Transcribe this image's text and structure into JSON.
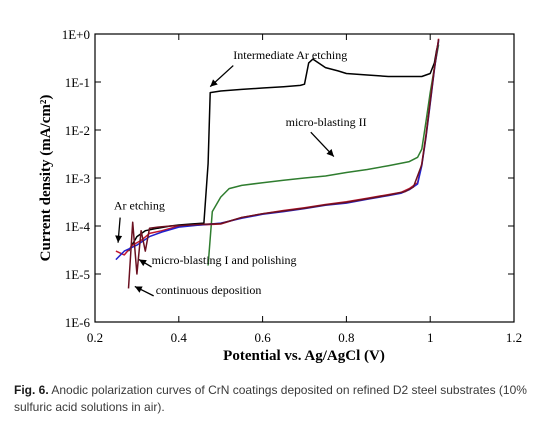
{
  "chart_data": {
    "type": "line",
    "xlabel": "Potential vs. Ag/AgCl (V)",
    "ylabel": "Current density (mA/cm²)",
    "xlim": [
      0.2,
      1.2
    ],
    "xticks": [
      "0.2",
      "0.4",
      "0.6",
      "0.8",
      "1",
      "1.2"
    ],
    "y_scale": "log",
    "ylim": [
      1e-06,
      1
    ],
    "yticks": [
      "1E-6",
      "1E-5",
      "1E-4",
      "1E-3",
      "1E-2",
      "1E-1",
      "1E+0"
    ],
    "grid": false,
    "series": [
      {
        "color": "#000000",
        "x": [
          0.28,
          0.3,
          0.32,
          0.35,
          0.38,
          0.4,
          0.43,
          0.46,
          0.47,
          0.475,
          0.5,
          0.55,
          0.6,
          0.65,
          0.69,
          0.7,
          0.71,
          0.72,
          0.75,
          0.78,
          0.8,
          0.85,
          0.9,
          0.95,
          0.98,
          1.0,
          1.01,
          1.015,
          1.02
        ],
        "y": [
          3e-05,
          6e-05,
          8e-05,
          9e-05,
          0.0001,
          0.000105,
          0.00011,
          0.000115,
          0.002,
          0.06,
          0.065,
          0.07,
          0.075,
          0.08,
          0.085,
          0.09,
          0.25,
          0.3,
          0.2,
          0.17,
          0.15,
          0.14,
          0.13,
          0.13,
          0.13,
          0.15,
          0.25,
          0.45,
          0.7
        ]
      },
      {
        "color": "#2f7d2f",
        "x": [
          0.47,
          0.48,
          0.5,
          0.52,
          0.55,
          0.6,
          0.65,
          0.7,
          0.75,
          0.8,
          0.85,
          0.9,
          0.95,
          0.97,
          0.98,
          0.99,
          1.0,
          1.01,
          1.02
        ],
        "y": [
          1.5e-05,
          0.0002,
          0.0004,
          0.0006,
          0.0007,
          0.0008,
          0.0009,
          0.001,
          0.0011,
          0.0013,
          0.0015,
          0.0018,
          0.0022,
          0.0027,
          0.004,
          0.015,
          0.06,
          0.2,
          0.6
        ]
      },
      {
        "color": "#c0162d",
        "x": [
          0.25,
          0.27,
          0.29,
          0.31,
          0.33,
          0.36,
          0.4,
          0.45,
          0.5,
          0.55,
          0.6,
          0.65,
          0.7,
          0.75,
          0.8,
          0.85,
          0.9,
          0.93,
          0.95,
          0.97,
          0.98,
          0.99,
          1.0,
          1.01,
          1.02
        ],
        "y": [
          3e-05,
          2.5e-05,
          4e-05,
          5e-05,
          7e-05,
          8e-05,
          0.0001,
          0.000105,
          0.00011,
          0.00015,
          0.00018,
          0.00021,
          0.00024,
          0.00028,
          0.00032,
          0.00038,
          0.00045,
          0.0005,
          0.0006,
          0.0008,
          0.002,
          0.008,
          0.04,
          0.2,
          0.8
        ]
      },
      {
        "color": "#2222cc",
        "x": [
          0.25,
          0.27,
          0.3,
          0.33,
          0.36,
          0.4,
          0.45,
          0.5,
          0.55,
          0.6,
          0.65,
          0.7,
          0.75,
          0.8,
          0.85,
          0.9,
          0.93,
          0.95,
          0.97,
          0.98,
          0.99,
          1.0,
          1.01,
          1.02
        ],
        "y": [
          2e-05,
          3e-05,
          4e-05,
          6e-05,
          7.5e-05,
          9.5e-05,
          0.000105,
          0.000115,
          0.000145,
          0.000175,
          0.0002,
          0.00023,
          0.00027,
          0.0003,
          0.00036,
          0.00043,
          0.00048,
          0.00057,
          0.00075,
          0.0018,
          0.007,
          0.035,
          0.18,
          0.75
        ]
      },
      {
        "color": "#6b1020",
        "x": [
          0.28,
          0.29,
          0.3,
          0.31,
          0.32,
          0.33,
          0.35,
          0.38,
          0.4,
          0.45,
          0.5,
          0.55,
          0.6,
          0.65,
          0.7,
          0.75,
          0.8,
          0.85,
          0.9,
          0.94,
          0.96,
          0.98,
          0.99,
          1.0,
          1.01,
          1.02
        ],
        "y": [
          5e-06,
          0.00012,
          1e-05,
          8e-05,
          3e-05,
          9e-05,
          9.5e-05,
          0.0001,
          0.000102,
          0.000108,
          0.000112,
          0.00015,
          0.00018,
          0.000205,
          0.000235,
          0.000275,
          0.00031,
          0.00037,
          0.00044,
          0.00052,
          0.00065,
          0.0019,
          0.0075,
          0.038,
          0.19,
          0.78
        ]
      }
    ],
    "annotations": [
      {
        "text": "Intermediate Ar etching",
        "x": 0.53,
        "y": 0.3
      },
      {
        "text": "micro-blasting II",
        "x": 0.655,
        "y": 0.012
      },
      {
        "text": "Ar etching",
        "x": 0.245,
        "y": 0.00022
      },
      {
        "text": "micro-blasting I and polishing",
        "x": 0.335,
        "y": 1.6e-05
      },
      {
        "text": "continuous deposition",
        "x": 0.345,
        "y": 3.8e-06
      }
    ]
  },
  "caption": {
    "label": "Fig. 6.",
    "text": "Anodic polarization curves of CrN coatings deposited on refined D2 steel substrates (10% sulfuric acid solutions in air)."
  }
}
